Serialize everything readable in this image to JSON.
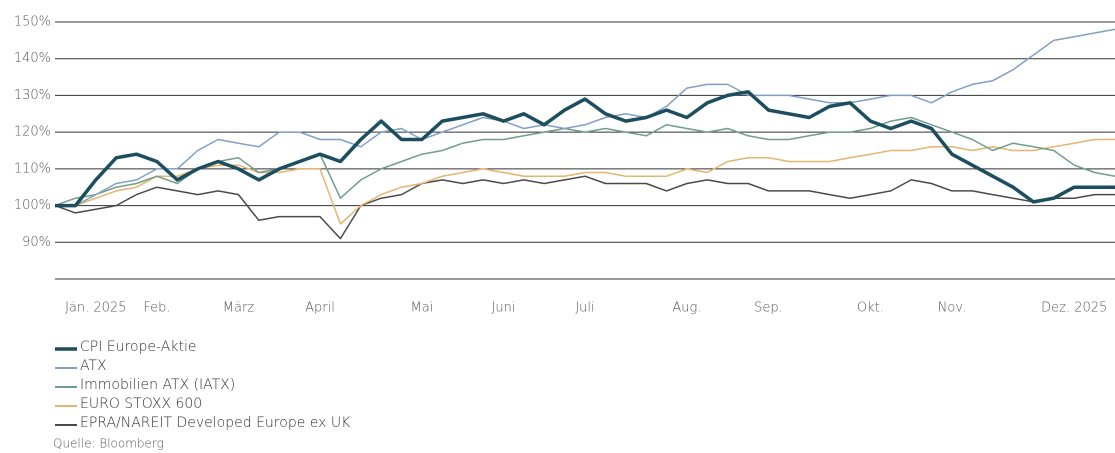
{
  "chart_data": {
    "type": "line",
    "categories": [
      null,
      null,
      "Jän. 2025",
      null,
      null,
      "Feb.",
      null,
      null,
      null,
      "März",
      null,
      null,
      null,
      "April",
      null,
      null,
      null,
      null,
      "Mai",
      null,
      null,
      null,
      "Juni",
      null,
      null,
      null,
      "Juli",
      null,
      null,
      null,
      null,
      "Aug.",
      null,
      null,
      null,
      "Sep.",
      null,
      null,
      null,
      null,
      "Okt.",
      null,
      null,
      null,
      "Nov.",
      null,
      null,
      null,
      null,
      null,
      "Dez. 2025",
      null,
      null
    ],
    "series": [
      {
        "name": "CPI Europe-Aktie",
        "color": "#1d4e5f",
        "values": [
          100,
          100,
          107,
          113,
          114,
          112,
          107,
          110,
          112,
          110,
          107,
          110,
          112,
          114,
          112,
          118,
          123,
          118,
          118,
          123,
          124,
          125,
          123,
          125,
          122,
          126,
          129,
          125,
          123,
          124,
          126,
          124,
          128,
          130,
          131,
          126,
          125,
          124,
          127,
          128,
          123,
          121,
          123,
          121,
          114,
          111,
          108,
          105,
          101,
          102,
          105,
          105,
          105
        ]
      },
      {
        "name": "ATX",
        "color": "#7f9fc8",
        "values": [
          100,
          100,
          103,
          106,
          107,
          110,
          110,
          115,
          118,
          117,
          116,
          120,
          120,
          118,
          118,
          116,
          120,
          121,
          118,
          120,
          122,
          124,
          123,
          121,
          122,
          121,
          122,
          124,
          125,
          124,
          127,
          132,
          133,
          133,
          130,
          130,
          130,
          129,
          128,
          128,
          129,
          130,
          130,
          128,
          131,
          133,
          134,
          137,
          141,
          145,
          146,
          147,
          148
        ]
      },
      {
        "name": "Immobilien ATX (IATX)",
        "color": "#6f9e89",
        "values": [
          100,
          102,
          103,
          105,
          106,
          108,
          106,
          110,
          112,
          113,
          109,
          110,
          112,
          114,
          102,
          107,
          110,
          112,
          114,
          115,
          117,
          118,
          118,
          119,
          120,
          121,
          120,
          121,
          120,
          119,
          122,
          121,
          120,
          121,
          119,
          118,
          118,
          119,
          120,
          120,
          121,
          123,
          124,
          122,
          120,
          118,
          115,
          117,
          116,
          115,
          111,
          109,
          108
        ]
      },
      {
        "name": "EURO STOXX 600",
        "color": "#e5b46e",
        "values": [
          100,
          100,
          102,
          104,
          105,
          108,
          108,
          110,
          111,
          111,
          109,
          109,
          110,
          110,
          95,
          100,
          103,
          105,
          106,
          108,
          109,
          110,
          109,
          108,
          108,
          108,
          109,
          109,
          108,
          108,
          108,
          110,
          109,
          112,
          113,
          113,
          112,
          112,
          112,
          113,
          114,
          115,
          115,
          116,
          116,
          115,
          116,
          115,
          115,
          116,
          117,
          118,
          118
        ]
      },
      {
        "name": "EPRA/NAREIT Developed Europe ex UK",
        "color": "#4a4a4a",
        "values": [
          100,
          98,
          99,
          100,
          103,
          105,
          104,
          103,
          104,
          103,
          96,
          97,
          97,
          97,
          91,
          100,
          102,
          103,
          106,
          107,
          106,
          107,
          106,
          107,
          106,
          107,
          108,
          106,
          106,
          106,
          104,
          106,
          107,
          106,
          106,
          104,
          104,
          104,
          103,
          102,
          103,
          104,
          107,
          106,
          104,
          104,
          103,
          102,
          101,
          102,
          102,
          103,
          103
        ]
      }
    ],
    "ylim": [
      80,
      150
    ],
    "yticks": [
      {
        "value": 90,
        "label": "90%"
      },
      {
        "value": 100,
        "label": "100%"
      },
      {
        "value": 110,
        "label": "110%"
      },
      {
        "value": 120,
        "label": "120%"
      },
      {
        "value": 130,
        "label": "130%"
      },
      {
        "value": 140,
        "label": "140%"
      },
      {
        "value": 150,
        "label": "150%"
      }
    ],
    "grid": true,
    "source": "Quelle: Bloomberg"
  }
}
